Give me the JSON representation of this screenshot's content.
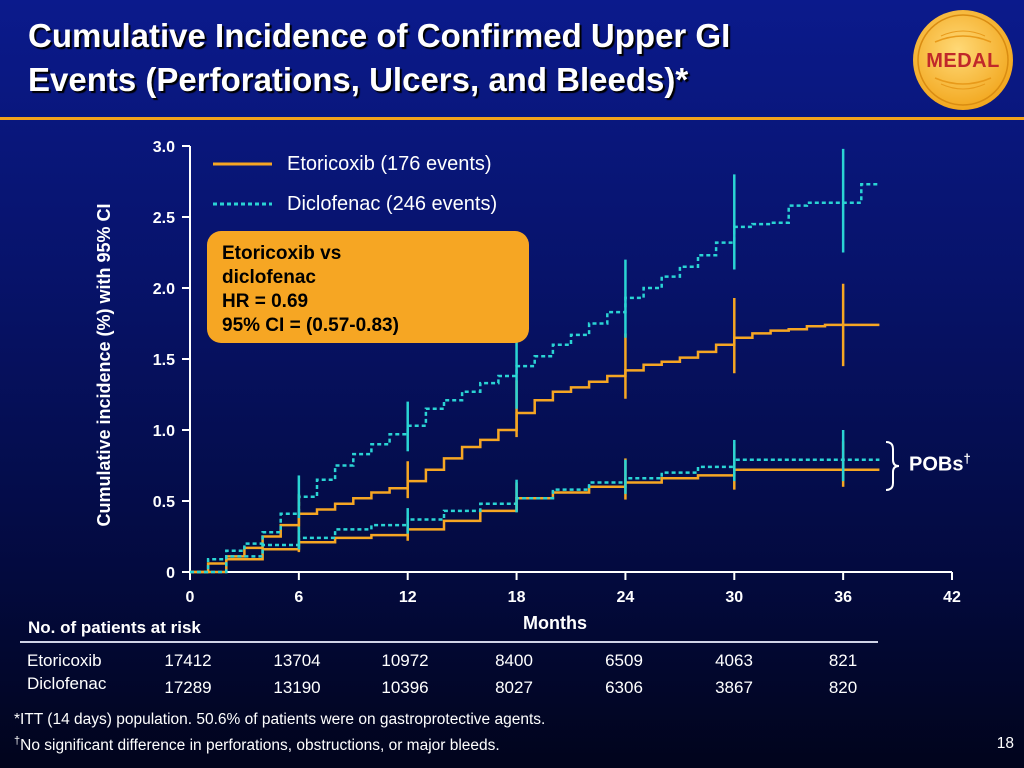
{
  "slide": {
    "title_line1": "Cumulative Incidence of Confirmed Upper GI",
    "title_line2": "Events (Perforations, Ulcers, and Bleeds)*",
    "logo_text": "MEDAL",
    "page_number": "18"
  },
  "colors": {
    "accent_orange": "#f6a623",
    "etoricoxib": "#f6a623",
    "diclofenac": "#2ad4d4",
    "logo_red": "#c0282a"
  },
  "annotations": {
    "hr_line1": "Etoricoxib vs",
    "hr_line2": "diclofenac",
    "hr_line3": "HR = 0.69",
    "hr_line4": "95% CI = (0.57-0.83)",
    "pobs_label": "POBs",
    "pobs_sup": "†"
  },
  "risk_table": {
    "header": "No. of patients at risk",
    "rows": [
      {
        "name": "Etoricoxib",
        "values": [
          "17412",
          "13704",
          "10972",
          "8400",
          "6509",
          "4063",
          "821"
        ]
      },
      {
        "name": "Diclofenac",
        "values": [
          "17289",
          "13190",
          "10396",
          "8027",
          "6306",
          "3867",
          "820"
        ]
      }
    ]
  },
  "footnotes": {
    "line1": "*ITT (14 days) population. 50.6% of patients were on gastroprotective agents.",
    "line2_mark": "†",
    "line2": "No significant difference in perforations, obstructions, or major bleeds."
  },
  "chart_data": {
    "type": "line",
    "xlabel": "Months",
    "ylabel": "Cumulative incidence (%) with 95% CI",
    "xlim": [
      0,
      42
    ],
    "ylim": [
      0,
      3.0
    ],
    "xticks": [
      0,
      6,
      12,
      18,
      24,
      30,
      36,
      42
    ],
    "yticks": [
      0,
      0.5,
      1.0,
      1.5,
      2.0,
      2.5,
      3.0
    ],
    "ytick_labels": [
      "0",
      "0.5",
      "1.0",
      "1.5",
      "2.0",
      "2.5",
      "3.0"
    ],
    "grid": false,
    "legend_position": "top-center",
    "series": [
      {
        "name": "Etoricoxib (176 events)",
        "color": "#f6a623",
        "style": "solid",
        "x": [
          0,
          1,
          2,
          3,
          4,
          5,
          6,
          7,
          8,
          9,
          10,
          11,
          12,
          13,
          14,
          15,
          16,
          17,
          18,
          19,
          20,
          21,
          22,
          23,
          24,
          25,
          26,
          27,
          28,
          29,
          30,
          31,
          32,
          33,
          34,
          35,
          36,
          37,
          38
        ],
        "y": [
          0,
          0.06,
          0.11,
          0.17,
          0.25,
          0.33,
          0.41,
          0.44,
          0.48,
          0.52,
          0.56,
          0.59,
          0.64,
          0.72,
          0.8,
          0.88,
          0.93,
          1.0,
          1.12,
          1.21,
          1.27,
          1.3,
          1.34,
          1.38,
          1.42,
          1.46,
          1.48,
          1.51,
          1.55,
          1.6,
          1.65,
          1.68,
          1.7,
          1.71,
          1.73,
          1.74,
          1.74,
          1.74,
          1.74
        ],
        "ci_x": [
          6,
          12,
          18,
          24,
          30,
          36
        ],
        "ci_low": [
          0.28,
          0.52,
          0.95,
          1.22,
          1.4,
          1.45
        ],
        "ci_high": [
          0.55,
          0.78,
          1.35,
          1.68,
          1.93,
          2.03
        ]
      },
      {
        "name": "Diclofenac (246 events)",
        "color": "#2ad4d4",
        "style": "dotted",
        "x": [
          0,
          1,
          2,
          3,
          4,
          5,
          6,
          7,
          8,
          9,
          10,
          11,
          12,
          13,
          14,
          15,
          16,
          17,
          18,
          19,
          20,
          21,
          22,
          23,
          24,
          25,
          26,
          27,
          28,
          29,
          30,
          31,
          32,
          33,
          34,
          35,
          36,
          37,
          38
        ],
        "y": [
          0,
          0.09,
          0.15,
          0.2,
          0.28,
          0.41,
          0.53,
          0.65,
          0.75,
          0.83,
          0.9,
          0.97,
          1.03,
          1.15,
          1.21,
          1.27,
          1.33,
          1.38,
          1.45,
          1.52,
          1.6,
          1.67,
          1.75,
          1.83,
          1.93,
          2.0,
          2.08,
          2.15,
          2.23,
          2.32,
          2.43,
          2.45,
          2.46,
          2.58,
          2.6,
          2.6,
          2.6,
          2.73,
          2.73
        ],
        "ci_x": [
          6,
          12,
          18,
          24,
          30,
          36
        ],
        "ci_low": [
          0.38,
          0.85,
          1.15,
          1.65,
          2.13,
          2.25
        ],
        "ci_high": [
          0.68,
          1.2,
          1.75,
          2.2,
          2.8,
          2.98
        ]
      },
      {
        "name": "Etoricoxib POBs",
        "color": "#f6a623",
        "style": "solid",
        "x": [
          0,
          2,
          4,
          6,
          8,
          10,
          12,
          14,
          16,
          18,
          20,
          22,
          24,
          26,
          28,
          30,
          32,
          34,
          36,
          38
        ],
        "y": [
          0,
          0.09,
          0.16,
          0.21,
          0.24,
          0.26,
          0.3,
          0.36,
          0.43,
          0.52,
          0.56,
          0.6,
          0.63,
          0.66,
          0.68,
          0.72,
          0.72,
          0.72,
          0.72,
          0.72
        ],
        "ci_x": [
          6,
          12,
          18,
          24,
          30,
          36
        ],
        "ci_low": [
          0.14,
          0.22,
          0.43,
          0.51,
          0.58,
          0.6
        ],
        "ci_high": [
          0.29,
          0.38,
          0.63,
          0.8,
          0.9,
          0.92
        ]
      },
      {
        "name": "Diclofenac POBs",
        "color": "#2ad4d4",
        "style": "dotted",
        "x": [
          0,
          2,
          4,
          6,
          8,
          10,
          12,
          14,
          16,
          18,
          20,
          22,
          24,
          26,
          28,
          30,
          32,
          34,
          36,
          38
        ],
        "y": [
          0,
          0.11,
          0.19,
          0.24,
          0.3,
          0.33,
          0.37,
          0.43,
          0.48,
          0.52,
          0.58,
          0.63,
          0.66,
          0.7,
          0.74,
          0.79,
          0.79,
          0.79,
          0.79,
          0.79
        ],
        "ci_x": [
          6,
          12,
          18,
          24,
          30,
          36
        ],
        "ci_low": [
          0.16,
          0.27,
          0.42,
          0.55,
          0.64,
          0.64
        ],
        "ci_high": [
          0.32,
          0.45,
          0.65,
          0.79,
          0.93,
          1.0
        ]
      }
    ]
  }
}
